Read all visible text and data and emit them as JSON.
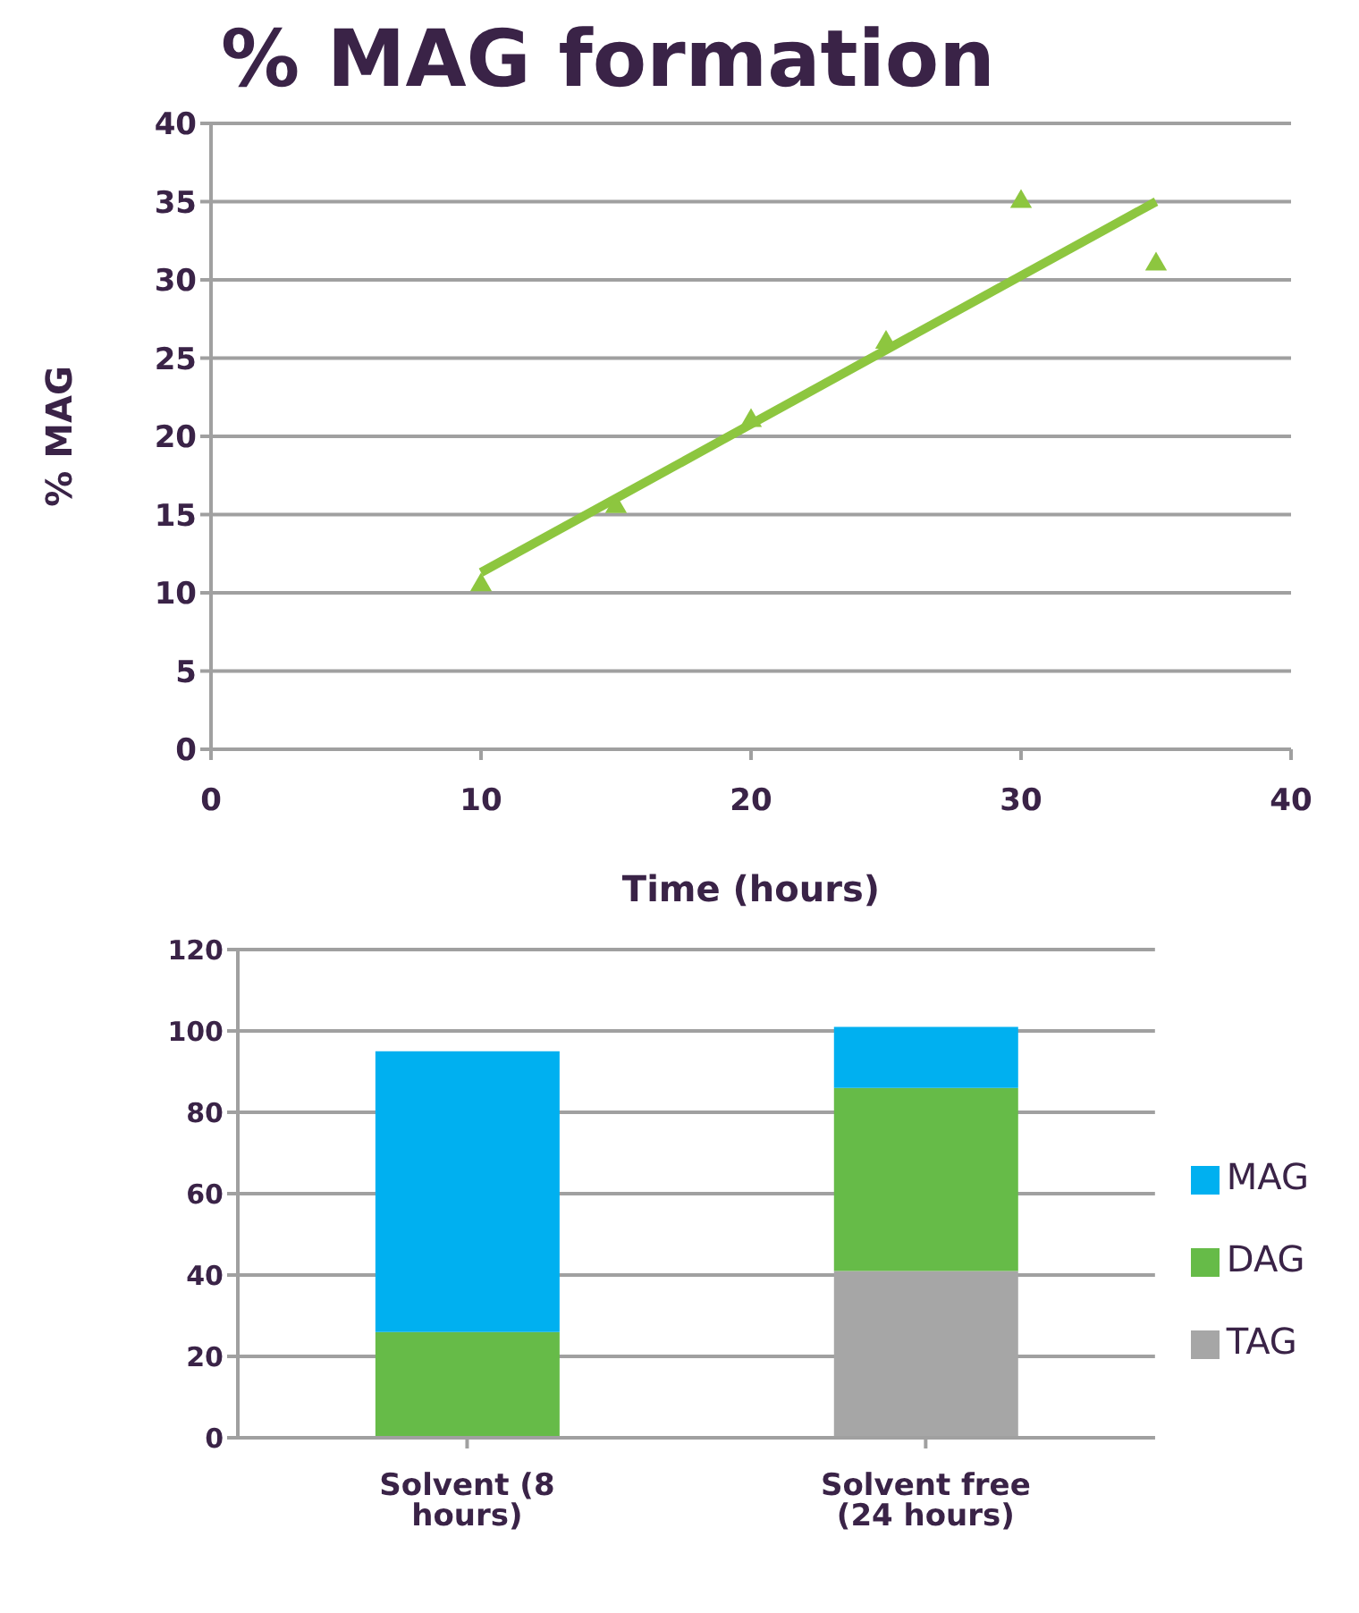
{
  "chart_data": [
    {
      "type": "scatter",
      "title": "% MAG formation",
      "xlabel": "Time (hours)",
      "ylabel": "% MAG",
      "xlim": [
        0,
        40
      ],
      "xticks": [
        0,
        10,
        20,
        30,
        40
      ],
      "ylim": [
        0,
        40
      ],
      "yticks": [
        0,
        5,
        10,
        15,
        20,
        25,
        30,
        35,
        40
      ],
      "grid": "y",
      "series": [
        {
          "type": "scatter",
          "marker": "triangle",
          "color": "#8dc63f",
          "x": [
            10,
            15,
            20,
            25,
            30,
            35
          ],
          "values": [
            10.5,
            15.5,
            21,
            26,
            35,
            31
          ]
        },
        {
          "type": "line",
          "marker": "none",
          "color": "#8dc63f",
          "x": [
            10,
            35
          ],
          "values": [
            11.3,
            35
          ]
        }
      ]
    },
    {
      "type": "bar",
      "stacked": true,
      "categories": [
        "Solvent (8 hours)",
        "Solvent free (24 hours)"
      ],
      "ylim": [
        0,
        120
      ],
      "yticks": [
        0,
        20,
        40,
        60,
        80,
        100,
        120
      ],
      "grid": "y",
      "legend": "right",
      "series": [
        {
          "name": "TAG",
          "color": "#a6a6a6",
          "values": [
            0,
            41
          ]
        },
        {
          "name": "DAG",
          "color": "#66bb48",
          "values": [
            26,
            45
          ]
        },
        {
          "name": "MAG",
          "color": "#00b0f0",
          "values": [
            69,
            15
          ]
        }
      ]
    }
  ]
}
